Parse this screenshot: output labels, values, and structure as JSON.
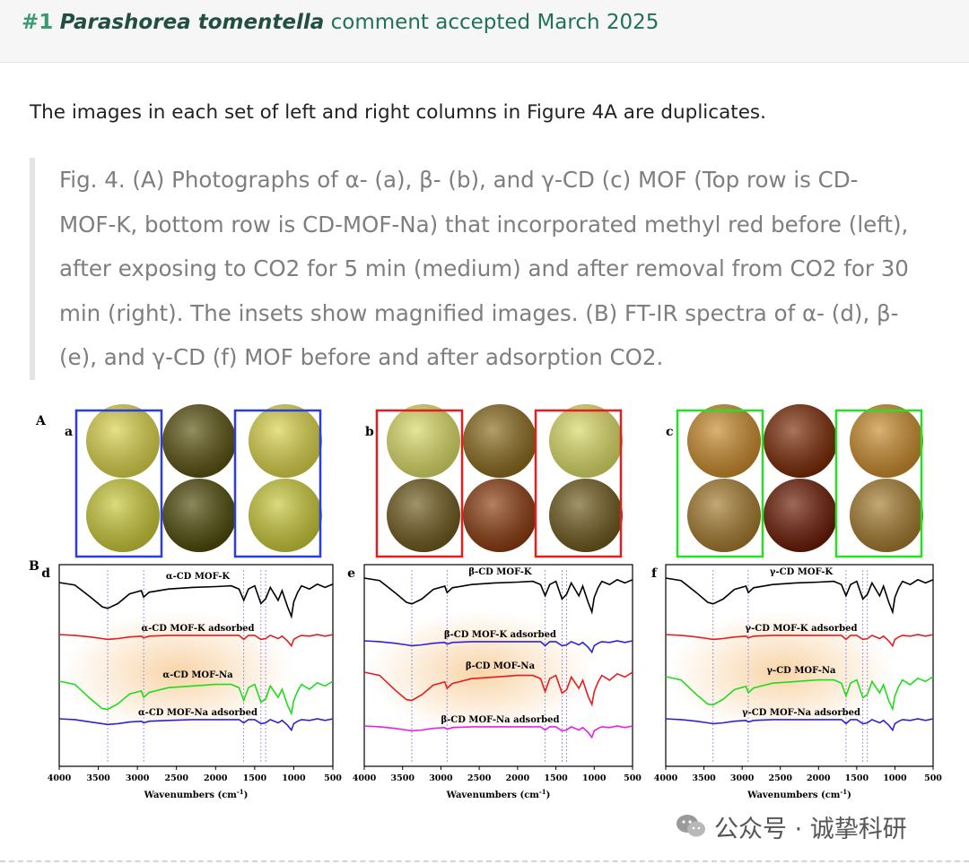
{
  "header": {
    "number": "#1",
    "taxon": "Parashorea tomentella",
    "status": "comment accepted March 2025"
  },
  "intro": "The images in each set of left and right columns in Figure 4A are duplicates.",
  "quote": "Fig. 4. (A) Photographs of α- (a), β- (b), and γ-CD (c) MOF (Top row is CD-MOF-K, bottom row is CD-MOF-Na) that incorporated methyl red before (left), after exposing to CO2 for 5 min (medium) and after removal from CO2 for 30 min (right). The insets show magnified images. (B) FT-IR spectra of α- (d), β- (e), and γ-CD (f) MOF before and after adsorption CO2.",
  "figure": {
    "panel_A": "A",
    "panel_B": "B",
    "photo_sets": [
      {
        "letter": "a",
        "box_color": "#2a3ee0",
        "photos": [
          "#d9d24a",
          "#5a5210",
          "#d9d24a",
          "#c9c83a",
          "#4e4a0a",
          "#c9c83a"
        ]
      },
      {
        "letter": "b",
        "box_color": "#e41e1e",
        "photos": [
          "#dada66",
          "#8a6a1e",
          "#dada66",
          "#6f5a1e",
          "#8a3c10",
          "#6f5a1e"
        ]
      },
      {
        "letter": "c",
        "box_color": "#25e025",
        "photos": [
          "#c88a2c",
          "#7a2a06",
          "#c88a2c",
          "#a47a2e",
          "#6a1a04",
          "#a47a2e"
        ]
      }
    ],
    "xlabel": "Wavenumbers (cm",
    "xlabel_sup": "-1",
    "xlabel_close": ")",
    "x_ticks": [
      "4000",
      "3500",
      "3000",
      "2500",
      "2000",
      "1500",
      "1000",
      "500"
    ]
  },
  "chart_data": [
    {
      "type": "line",
      "panel": "d",
      "xlabel": "Wavenumbers (cm-1)",
      "xlim": [
        4000,
        500
      ],
      "x_ticks": [
        4000,
        3500,
        3000,
        2500,
        2000,
        1500,
        1000,
        500
      ],
      "marker_lines": [
        3380,
        2920,
        1640,
        1420,
        1360
      ],
      "series": [
        {
          "name": "α-CD MOF-K",
          "color": "#000000",
          "offset": 20,
          "x": [
            4000,
            3800,
            3600,
            3450,
            3380,
            3250,
            3100,
            2950,
            2920,
            2850,
            2600,
            2300,
            2000,
            1800,
            1700,
            1640,
            1580,
            1500,
            1420,
            1360,
            1300,
            1200,
            1150,
            1080,
            1030,
            1000,
            950,
            900,
            800,
            700,
            600,
            500
          ],
          "y": [
            0,
            -3,
            -18,
            -30,
            -32,
            -26,
            -14,
            -10,
            -18,
            -12,
            -8,
            -6,
            -5,
            -4,
            -8,
            -22,
            -8,
            -4,
            -26,
            -20,
            -6,
            -22,
            -10,
            -30,
            -42,
            -24,
            -12,
            -4,
            -8,
            -2,
            -6,
            -2
          ]
        },
        {
          "name": "α-CD MOF-K adsorbed",
          "color": "#e41e1e",
          "offset": 78,
          "x": [
            4000,
            3800,
            3600,
            3450,
            3380,
            3250,
            3100,
            2950,
            2920,
            2850,
            2600,
            2300,
            2000,
            1800,
            1700,
            1640,
            1580,
            1500,
            1420,
            1360,
            1300,
            1200,
            1150,
            1080,
            1030,
            1000,
            950,
            900,
            800,
            700,
            600,
            500
          ],
          "y": [
            0,
            -1,
            -3,
            -5,
            -6,
            -5,
            -3,
            -2,
            -4,
            -2,
            -1,
            -1,
            -1,
            -1,
            -1,
            -6,
            -1,
            -1,
            -6,
            -5,
            -1,
            -5,
            -2,
            -8,
            -14,
            -6,
            -3,
            -1,
            -2,
            0,
            -2,
            0
          ]
        },
        {
          "name": "α-CD MOF-Na",
          "color": "#1fdc1f",
          "offset": 130,
          "x": [
            4000,
            3800,
            3600,
            3450,
            3380,
            3250,
            3100,
            2950,
            2920,
            2850,
            2600,
            2300,
            2000,
            1800,
            1700,
            1640,
            1580,
            1500,
            1420,
            1360,
            1300,
            1200,
            1150,
            1080,
            1030,
            1000,
            950,
            900,
            800,
            700,
            600,
            500
          ],
          "y": [
            0,
            -4,
            -22,
            -34,
            -35,
            -28,
            -16,
            -12,
            -20,
            -14,
            -8,
            -6,
            -4,
            -4,
            -8,
            -24,
            -8,
            -4,
            -26,
            -22,
            -6,
            -20,
            -10,
            -30,
            -40,
            -24,
            -12,
            -4,
            -10,
            -2,
            -6,
            0
          ]
        },
        {
          "name": "α-CD MOF-Na adsorbed",
          "color": "#2a24d8",
          "offset": 172,
          "x": [
            4000,
            3800,
            3600,
            3450,
            3380,
            3250,
            3100,
            2950,
            2920,
            2850,
            2600,
            2300,
            2000,
            1800,
            1700,
            1640,
            1580,
            1500,
            1420,
            1360,
            1300,
            1200,
            1150,
            1080,
            1030,
            1000,
            950,
            900,
            800,
            700,
            600,
            500
          ],
          "y": [
            0,
            -1,
            -4,
            -6,
            -7,
            -6,
            -4,
            -3,
            -5,
            -3,
            -2,
            -1,
            -1,
            -1,
            -1,
            -5,
            -1,
            -1,
            -6,
            -5,
            -1,
            -5,
            -2,
            -8,
            -14,
            -6,
            -3,
            -1,
            -2,
            0,
            -2,
            0
          ]
        }
      ]
    },
    {
      "type": "line",
      "panel": "e",
      "xlabel": "Wavenumbers (cm-1)",
      "xlim": [
        4000,
        500
      ],
      "x_ticks": [
        4000,
        3500,
        3000,
        2500,
        2000,
        1500,
        1000,
        500
      ],
      "marker_lines": [
        3380,
        2920,
        1640,
        1420,
        1360
      ],
      "series": [
        {
          "name": "β-CD MOF-K",
          "color": "#000000",
          "offset": 15,
          "x": [
            4000,
            3800,
            3600,
            3450,
            3380,
            3250,
            3100,
            2950,
            2920,
            2850,
            2600,
            2300,
            2000,
            1800,
            1700,
            1640,
            1580,
            1500,
            1420,
            1360,
            1300,
            1200,
            1150,
            1080,
            1030,
            1000,
            950,
            900,
            800,
            700,
            600,
            500
          ],
          "y": [
            0,
            -3,
            -18,
            -30,
            -32,
            -26,
            -14,
            -10,
            -18,
            -12,
            -8,
            -6,
            -5,
            -4,
            -8,
            -22,
            -8,
            -4,
            -26,
            -20,
            -6,
            -22,
            -10,
            -30,
            -42,
            -24,
            -12,
            -4,
            -8,
            -2,
            -6,
            -2
          ]
        },
        {
          "name": "β-CD MOF-K adsorbed",
          "color": "#2a24d8",
          "offset": 85,
          "x": [
            4000,
            3800,
            3600,
            3450,
            3380,
            3250,
            3100,
            2950,
            2920,
            2850,
            2600,
            2300,
            2000,
            1800,
            1700,
            1640,
            1580,
            1500,
            1420,
            1360,
            1300,
            1200,
            1150,
            1080,
            1030,
            1000,
            950,
            900,
            800,
            700,
            600,
            500
          ],
          "y": [
            0,
            -1,
            -3,
            -5,
            -6,
            -5,
            -3,
            -2,
            -4,
            -2,
            -1,
            -1,
            -1,
            -1,
            -1,
            -6,
            -1,
            -1,
            -6,
            -5,
            -1,
            -5,
            -2,
            -8,
            -14,
            -6,
            -3,
            -1,
            -2,
            0,
            -2,
            0
          ]
        },
        {
          "name": "β-CD MOF-Na",
          "color": "#e41e1e",
          "offset": 120,
          "x": [
            4000,
            3800,
            3600,
            3450,
            3380,
            3250,
            3100,
            2950,
            2920,
            2850,
            2600,
            2300,
            2000,
            1800,
            1700,
            1640,
            1580,
            1500,
            1420,
            1360,
            1300,
            1200,
            1150,
            1080,
            1030,
            1000,
            950,
            900,
            800,
            700,
            600,
            500
          ],
          "y": [
            0,
            -4,
            -22,
            -34,
            -35,
            -28,
            -16,
            -12,
            -20,
            -14,
            -8,
            -6,
            -4,
            -4,
            -8,
            -24,
            -8,
            -4,
            -26,
            -22,
            -6,
            -20,
            -10,
            -30,
            -40,
            -24,
            -12,
            -4,
            -10,
            -2,
            -6,
            0
          ]
        },
        {
          "name": "β-CD MOF-Na adsorbed",
          "color": "#e81ee8",
          "offset": 180,
          "x": [
            4000,
            3800,
            3600,
            3450,
            3380,
            3250,
            3100,
            2950,
            2920,
            2850,
            2600,
            2300,
            2000,
            1800,
            1700,
            1640,
            1580,
            1500,
            1420,
            1360,
            1300,
            1200,
            1150,
            1080,
            1030,
            1000,
            950,
            900,
            800,
            700,
            600,
            500
          ],
          "y": [
            0,
            -1,
            -3,
            -5,
            -6,
            -5,
            -3,
            -2,
            -4,
            -2,
            -1,
            -1,
            -1,
            -1,
            -1,
            -5,
            -1,
            -1,
            -6,
            -5,
            -1,
            -5,
            -2,
            -8,
            -14,
            -6,
            -3,
            -1,
            -2,
            0,
            -2,
            0
          ]
        }
      ]
    },
    {
      "type": "line",
      "panel": "f",
      "xlabel": "Wavenumbers (cm-1)",
      "xlim": [
        4000,
        500
      ],
      "x_ticks": [
        4000,
        3500,
        3000,
        2500,
        2000,
        1500,
        1000,
        500
      ],
      "marker_lines": [
        3380,
        2920,
        1640,
        1420,
        1360
      ],
      "series": [
        {
          "name": "γ-CD MOF-K",
          "color": "#000000",
          "offset": 15,
          "x": [
            4000,
            3800,
            3600,
            3450,
            3380,
            3250,
            3100,
            2950,
            2920,
            2850,
            2600,
            2300,
            2000,
            1800,
            1700,
            1640,
            1580,
            1500,
            1420,
            1360,
            1300,
            1200,
            1150,
            1080,
            1030,
            1000,
            950,
            900,
            800,
            700,
            600,
            500
          ],
          "y": [
            0,
            -3,
            -18,
            -30,
            -32,
            -26,
            -14,
            -10,
            -18,
            -12,
            -8,
            -6,
            -5,
            -4,
            -8,
            -22,
            -8,
            -4,
            -26,
            -20,
            -6,
            -22,
            -10,
            -30,
            -42,
            -24,
            -12,
            -4,
            -8,
            -2,
            -6,
            -2
          ]
        },
        {
          "name": "γ-CD MOF-K adsorbed",
          "color": "#e41e1e",
          "offset": 78,
          "x": [
            4000,
            3800,
            3600,
            3450,
            3380,
            3250,
            3100,
            2950,
            2920,
            2850,
            2600,
            2300,
            2000,
            1800,
            1700,
            1640,
            1580,
            1500,
            1420,
            1360,
            1300,
            1200,
            1150,
            1080,
            1030,
            1000,
            950,
            900,
            800,
            700,
            600,
            500
          ],
          "y": [
            0,
            -1,
            -3,
            -5,
            -6,
            -5,
            -3,
            -2,
            -4,
            -2,
            -1,
            -1,
            -1,
            -1,
            -1,
            -6,
            -1,
            -1,
            -6,
            -5,
            -1,
            -5,
            -2,
            -8,
            -14,
            -6,
            -3,
            -1,
            -2,
            0,
            -2,
            0
          ]
        },
        {
          "name": "γ-CD MOF-Na",
          "color": "#1fdc1f",
          "offset": 125,
          "x": [
            4000,
            3800,
            3600,
            3450,
            3380,
            3250,
            3100,
            2950,
            2920,
            2850,
            2600,
            2300,
            2000,
            1800,
            1700,
            1640,
            1580,
            1500,
            1420,
            1360,
            1300,
            1200,
            1150,
            1080,
            1030,
            1000,
            950,
            900,
            800,
            700,
            600,
            500
          ],
          "y": [
            0,
            -4,
            -22,
            -34,
            -35,
            -28,
            -16,
            -12,
            -20,
            -14,
            -8,
            -6,
            -4,
            -4,
            -8,
            -24,
            -8,
            -4,
            -26,
            -22,
            -6,
            -20,
            -10,
            -30,
            -40,
            -24,
            -12,
            -4,
            -10,
            -2,
            -6,
            0
          ]
        },
        {
          "name": "γ-CD MOF-Na adsorbed",
          "color": "#2a24d8",
          "offset": 172,
          "x": [
            4000,
            3800,
            3600,
            3450,
            3380,
            3250,
            3100,
            2950,
            2920,
            2850,
            2600,
            2300,
            2000,
            1800,
            1700,
            1640,
            1580,
            1500,
            1420,
            1360,
            1300,
            1200,
            1150,
            1080,
            1030,
            1000,
            950,
            900,
            800,
            700,
            600,
            500
          ],
          "y": [
            0,
            -1,
            -3,
            -5,
            -6,
            -5,
            -3,
            -2,
            -4,
            -2,
            -1,
            -1,
            -1,
            -1,
            -1,
            -6,
            -1,
            -1,
            -6,
            -5,
            -1,
            -5,
            -2,
            -8,
            -14,
            -6,
            -3,
            -1,
            -2,
            0,
            -2,
            0
          ]
        }
      ]
    }
  ],
  "watermark": {
    "text": "公众号 · 诚挚科研",
    "icon": "wechat-icon"
  }
}
